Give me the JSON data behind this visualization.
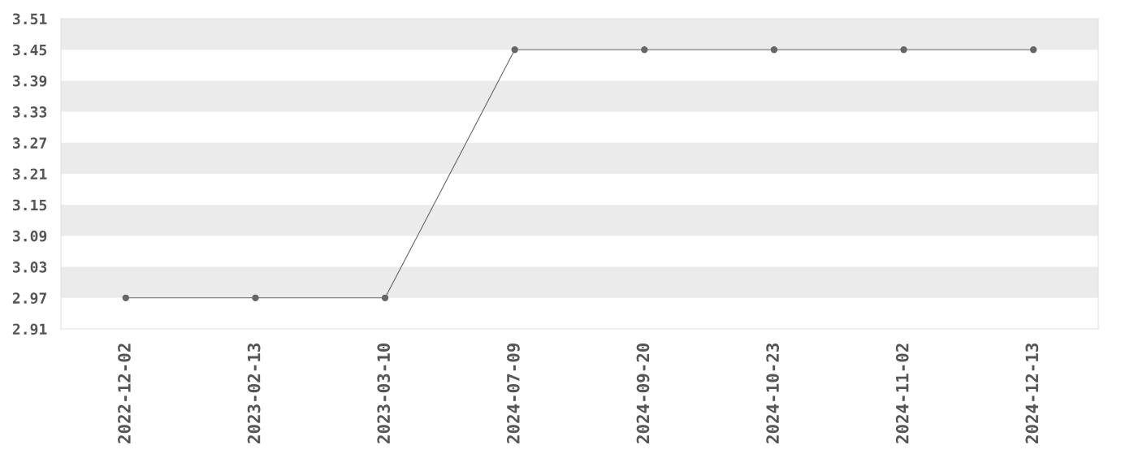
{
  "chart_data": {
    "type": "line",
    "categories": [
      "2022-12-02",
      "2023-02-13",
      "2023-03-10",
      "2024-07-09",
      "2024-09-20",
      "2024-10-23",
      "2024-11-02",
      "2024-12-13"
    ],
    "series": [
      {
        "color": "#666666",
        "values": [
          2.97,
          2.97,
          2.97,
          3.45,
          3.45,
          3.45,
          3.45,
          3.45
        ]
      }
    ],
    "ylim": [
      2.91,
      3.51
    ],
    "yticks": [
      {
        "value": 2.91,
        "label": "2.91"
      },
      {
        "value": 2.97,
        "label": "2.97"
      },
      {
        "value": 3.03,
        "label": "3.03"
      },
      {
        "value": 3.09,
        "label": "3.09"
      },
      {
        "value": 3.15,
        "label": "3.15"
      },
      {
        "value": 3.21,
        "label": "3.21"
      },
      {
        "value": 3.27,
        "label": "3.27"
      },
      {
        "value": 3.33,
        "label": "3.33"
      },
      {
        "value": 3.39,
        "label": "3.39"
      },
      {
        "value": 3.45,
        "label": "3.45"
      },
      {
        "value": 3.51,
        "label": "3.51"
      }
    ],
    "bands": [
      {
        "axis": "y",
        "from": 2.97,
        "to": 3.03,
        "color": "#ebebeb"
      },
      {
        "axis": "y",
        "from": 3.09,
        "to": 3.15,
        "color": "#ebebeb"
      },
      {
        "axis": "y",
        "from": 3.21,
        "to": 3.27,
        "color": "#ebebeb"
      },
      {
        "axis": "y",
        "from": 3.33,
        "to": 3.39,
        "color": "#ebebeb"
      },
      {
        "axis": "y",
        "from": 3.45,
        "to": 3.51,
        "color": "#ebebeb"
      }
    ],
    "marker": "circle",
    "line_style": "solid",
    "grid": false,
    "legend": false
  }
}
